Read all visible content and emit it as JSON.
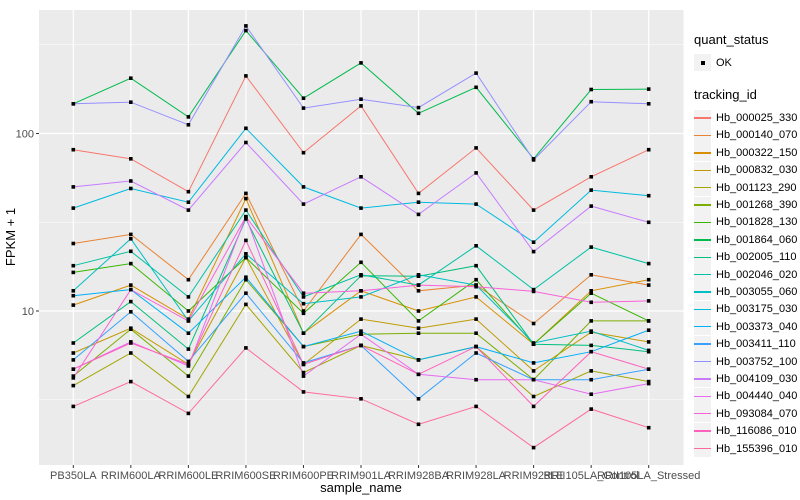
{
  "legend": {
    "quant_status_title": "quant_status",
    "quant_status_items": [
      "OK"
    ],
    "tracking_id_title": "tracking_id"
  },
  "chart_data": {
    "type": "line",
    "title": "",
    "xlabel": "sample_name",
    "ylabel": "FPKM + 1",
    "y_scale": "log10",
    "y_ticks": [
      10,
      100
    ],
    "y_minor_ticks": [
      3.162,
      31.62,
      316.2
    ],
    "ylim": [
      1.45,
      490
    ],
    "legend_position": "right",
    "grid": "on",
    "panel_background": "#EBEBEB",
    "gridline_color": "#FFFFFF",
    "point_color": "#000000",
    "categories": [
      "PB350LA",
      "RRIM600LA",
      "RRIM600LE",
      "RRIM600SE",
      "RRIM600PE",
      "RRIM901LA",
      "RRIM928BA",
      "RRIM928LA",
      "RRIM928LE",
      "RRII105LA_Control",
      "RRII105LA_Stressed"
    ],
    "series": [
      {
        "name": "Hb_000025_330",
        "color": "#F8766D",
        "values": [
          81,
          72,
          47,
          211,
          78,
          143,
          46,
          83,
          37,
          57,
          81
        ]
      },
      {
        "name": "Hb_000140_070",
        "color": "#EA8331",
        "values": [
          24,
          27,
          15,
          46,
          10,
          27,
          13,
          14,
          8.5,
          16,
          14
        ]
      },
      {
        "name": "Hb_000322_150",
        "color": "#D89000",
        "values": [
          10.8,
          14,
          9,
          43,
          7.5,
          13,
          10,
          12,
          6.5,
          13,
          15
        ]
      },
      {
        "name": "Hb_000832_030",
        "color": "#C09B00",
        "values": [
          5.8,
          8,
          5,
          20,
          5,
          9,
          8,
          9,
          4.6,
          7.6,
          6.7
        ]
      },
      {
        "name": "Hb_001123_290",
        "color": "#A3A500",
        "values": [
          3.8,
          5.8,
          3.3,
          10.9,
          4.5,
          6.4,
          5.3,
          6.3,
          3.3,
          4.6,
          4.0
        ]
      },
      {
        "name": "Hb_001268_390",
        "color": "#7CAE00",
        "values": [
          4.3,
          7.9,
          4.3,
          15,
          6.3,
          7.4,
          7.5,
          7.5,
          4.1,
          8.8,
          8.8
        ]
      },
      {
        "name": "Hb_001828_130",
        "color": "#39B600",
        "values": [
          16.5,
          18.5,
          10,
          20,
          9.7,
          18.8,
          8.8,
          15,
          6.5,
          12.6,
          8.8
        ]
      },
      {
        "name": "Hb_001864_060",
        "color": "#00BB4E",
        "values": [
          147,
          205,
          124,
          380,
          158,
          250,
          130,
          182,
          72,
          177,
          178
        ]
      },
      {
        "name": "Hb_002005_110",
        "color": "#00BF7D",
        "values": [
          6.6,
          11.3,
          6.1,
          33,
          7.5,
          15.8,
          15.7,
          18,
          6.5,
          6.4,
          5.9
        ]
      },
      {
        "name": "Hb_002046_020",
        "color": "#00C1A3",
        "values": [
          18,
          21.7,
          12,
          37,
          12,
          16,
          14,
          23.3,
          13.2,
          22.9,
          18.5
        ]
      },
      {
        "name": "Hb_003055_060",
        "color": "#00BFC4",
        "values": [
          13,
          25.5,
          8.8,
          21,
          11,
          12,
          16,
          14,
          6.6,
          7.7,
          6.0
        ]
      },
      {
        "name": "Hb_003175_030",
        "color": "#00BAE0",
        "values": [
          38,
          49,
          41,
          107,
          50,
          38,
          41,
          40,
          24.4,
          48,
          44.6
        ]
      },
      {
        "name": "Hb_003373_040",
        "color": "#00B0F6",
        "values": [
          12.2,
          13.2,
          7.5,
          15.5,
          6.3,
          7.7,
          5.3,
          6.3,
          5.1,
          5.9,
          7.8
        ]
      },
      {
        "name": "Hb_003411_110",
        "color": "#35A2FF",
        "values": [
          5.3,
          9.9,
          5.2,
          12.6,
          5.1,
          6.4,
          3.2,
          5.8,
          4.1,
          4.1,
          4.7
        ]
      },
      {
        "name": "Hb_003752_100",
        "color": "#9590FF",
        "values": [
          147,
          150,
          112,
          404,
          139,
          156,
          140,
          219,
          71,
          151,
          147
        ]
      },
      {
        "name": "Hb_004109_030",
        "color": "#C77CFF",
        "values": [
          50,
          54,
          37,
          89,
          40,
          57,
          35,
          60,
          21.6,
          39,
          31.6
        ]
      },
      {
        "name": "Hb_004440_040",
        "color": "#E76BF3",
        "values": [
          4.7,
          6.7,
          4.9,
          34,
          4.3,
          7.4,
          4.4,
          4.1,
          4.1,
          3.4,
          3.9
        ]
      },
      {
        "name": "Hb_093084_070",
        "color": "#FA62DB",
        "values": [
          4.2,
          13.2,
          8.8,
          34,
          12.6,
          13,
          14,
          13.7,
          12.9,
          11.2,
          11.4
        ]
      },
      {
        "name": "Hb_116086_010",
        "color": "#FF62BC",
        "values": [
          4.7,
          6.6,
          5.0,
          25,
          5.0,
          6.4,
          4.4,
          6.3,
          2.9,
          5.9,
          4.7
        ]
      },
      {
        "name": "Hb_155396_010",
        "color": "#FF6A98",
        "values": [
          2.9,
          4.0,
          2.65,
          6.2,
          3.5,
          3.2,
          2.3,
          2.9,
          1.7,
          2.8,
          2.2
        ]
      }
    ]
  }
}
